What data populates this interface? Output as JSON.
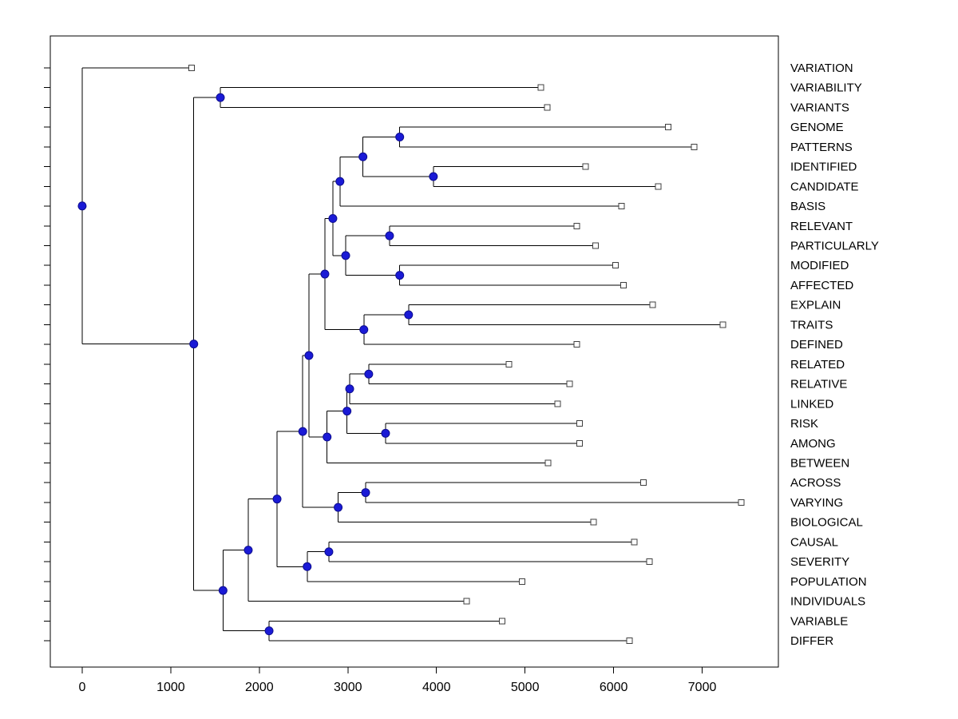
{
  "figure": {
    "colors": {
      "background": "#ffffff",
      "box": "#000000",
      "branch": "#000000",
      "leaf_marker_fill": "#ffffff",
      "leaf_marker_stroke": "#404040",
      "node_fill": "#1a1ad6",
      "node_stroke": "#0d0d8f",
      "text": "#000000"
    }
  },
  "chart_data": {
    "type": "dendrogram",
    "subtype": "phylogenetic-tree",
    "orientation": "horizontal-left-root",
    "title": "",
    "xlabel": "",
    "ylabel": "",
    "grid": false,
    "legend": "none",
    "xlim": [
      -360,
      7860
    ],
    "x_ticks": [
      0,
      1000,
      2000,
      3000,
      4000,
      5000,
      6000,
      7000
    ],
    "leaf_marker": "open-square",
    "branch_marker": "filled-blue-circle",
    "leaves": [
      {
        "label": "VARIATION",
        "x": 1235
      },
      {
        "label": "VARIABILITY",
        "x": 5180
      },
      {
        "label": "VARIANTS",
        "x": 5250
      },
      {
        "label": "GENOME",
        "x": 6615
      },
      {
        "label": "PATTERNS",
        "x": 6910
      },
      {
        "label": "IDENTIFIED",
        "x": 5685
      },
      {
        "label": "CANDIDATE",
        "x": 6505
      },
      {
        "label": "BASIS",
        "x": 6090
      },
      {
        "label": "RELEVANT",
        "x": 5585
      },
      {
        "label": "PARTICULARLY",
        "x": 5795
      },
      {
        "label": "MODIFIED",
        "x": 6020
      },
      {
        "label": "AFFECTED",
        "x": 6110
      },
      {
        "label": "EXPLAIN",
        "x": 6440
      },
      {
        "label": "TRAITS",
        "x": 7235
      },
      {
        "label": "DEFINED",
        "x": 5585
      },
      {
        "label": "RELATED",
        "x": 4820
      },
      {
        "label": "RELATIVE",
        "x": 5505
      },
      {
        "label": "LINKED",
        "x": 5370
      },
      {
        "label": "RISK",
        "x": 5615
      },
      {
        "label": "AMONG",
        "x": 5615
      },
      {
        "label": "BETWEEN",
        "x": 5260
      },
      {
        "label": "ACROSS",
        "x": 6335
      },
      {
        "label": "VARYING",
        "x": 7440
      },
      {
        "label": "BIOLOGICAL",
        "x": 5775
      },
      {
        "label": "CAUSAL",
        "x": 6235
      },
      {
        "label": "SEVERITY",
        "x": 6405
      },
      {
        "label": "POPULATION",
        "x": 4965
      },
      {
        "label": "INDIVIDUALS",
        "x": 4340
      },
      {
        "label": "VARIABLE",
        "x": 4740
      },
      {
        "label": "DIFFER",
        "x": 6180
      }
    ],
    "tree": {
      "x": 0,
      "children": [
        {
          "leaf": 0
        },
        {
          "x": 1260,
          "children": [
            {
              "x": 1560,
              "children": [
                {
                  "leaf": 1
                },
                {
                  "leaf": 2
                }
              ]
            },
            {
              "x": 1590,
              "children": [
                {
                  "x": 1875,
                  "children": [
                    {
                      "x": 2200,
                      "children": [
                        {
                          "x": 2490,
                          "children": [
                            {
                              "x": 2560,
                              "children": [
                                {
                                  "x": 2740,
                                  "children": [
                                    {
                                      "x": 2830,
                                      "children": [
                                        {
                                          "x": 2910,
                                          "children": [
                                            {
                                              "x": 3170,
                                              "children": [
                                                {
                                                  "x": 3585,
                                                  "children": [
                                                    {
                                                      "leaf": 3
                                                    },
                                                    {
                                                      "leaf": 4
                                                    }
                                                  ]
                                                },
                                                {
                                                  "x": 3965,
                                                  "children": [
                                                    {
                                                      "leaf": 5
                                                    },
                                                    {
                                                      "leaf": 6
                                                    }
                                                  ]
                                                }
                                              ]
                                            },
                                            {
                                              "leaf": 7
                                            }
                                          ]
                                        },
                                        {
                                          "x": 2975,
                                          "children": [
                                            {
                                              "x": 3470,
                                              "children": [
                                                {
                                                  "leaf": 8
                                                },
                                                {
                                                  "leaf": 9
                                                }
                                              ]
                                            },
                                            {
                                              "x": 3585,
                                              "children": [
                                                {
                                                  "leaf": 10
                                                },
                                                {
                                                  "leaf": 11
                                                }
                                              ]
                                            }
                                          ]
                                        }
                                      ]
                                    },
                                    {
                                      "x": 3180,
                                      "children": [
                                        {
                                          "x": 3685,
                                          "children": [
                                            {
                                              "leaf": 12
                                            },
                                            {
                                              "leaf": 13
                                            }
                                          ]
                                        },
                                        {
                                          "leaf": 14
                                        }
                                      ]
                                    }
                                  ]
                                },
                                {
                                  "x": 2765,
                                  "children": [
                                    {
                                      "x": 2990,
                                      "children": [
                                        {
                                          "x": 3020,
                                          "children": [
                                            {
                                              "x": 3235,
                                              "children": [
                                                {
                                                  "leaf": 15
                                                },
                                                {
                                                  "leaf": 16
                                                }
                                              ]
                                            },
                                            {
                                              "leaf": 17
                                            }
                                          ]
                                        },
                                        {
                                          "x": 3425,
                                          "children": [
                                            {
                                              "leaf": 18
                                            },
                                            {
                                              "leaf": 19
                                            }
                                          ]
                                        }
                                      ]
                                    },
                                    {
                                      "leaf": 20
                                    }
                                  ]
                                }
                              ]
                            },
                            {
                              "x": 2890,
                              "children": [
                                {
                                  "x": 3200,
                                  "children": [
                                    {
                                      "leaf": 21
                                    },
                                    {
                                      "leaf": 22
                                    }
                                  ]
                                },
                                {
                                  "leaf": 23
                                }
                              ]
                            }
                          ]
                        },
                        {
                          "x": 2540,
                          "children": [
                            {
                              "x": 2785,
                              "children": [
                                {
                                  "leaf": 24
                                },
                                {
                                  "leaf": 25
                                }
                              ]
                            },
                            {
                              "leaf": 26
                            }
                          ]
                        }
                      ]
                    },
                    {
                      "leaf": 27
                    }
                  ]
                },
                {
                  "x": 2110,
                  "children": [
                    {
                      "leaf": 28
                    },
                    {
                      "leaf": 29
                    }
                  ]
                }
              ]
            }
          ]
        }
      ]
    }
  }
}
